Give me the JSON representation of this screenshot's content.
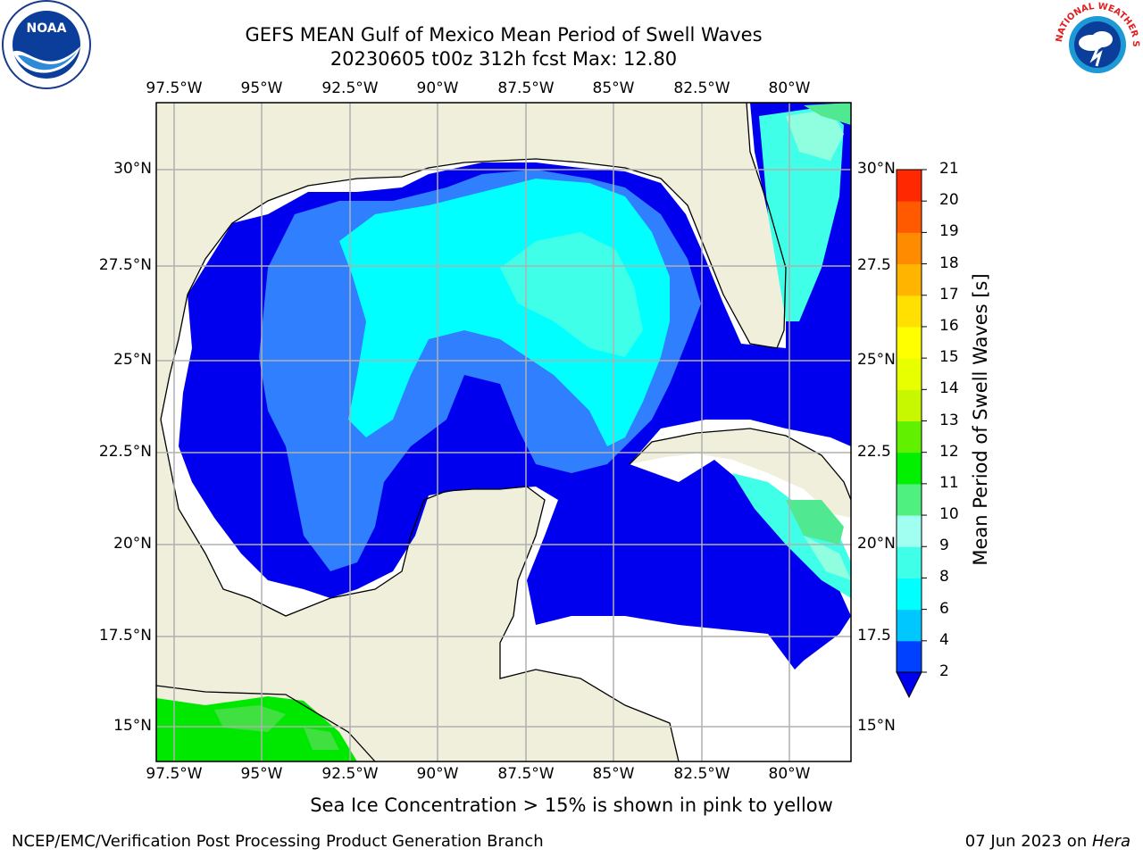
{
  "header": {
    "title_line1": "GEFS MEAN Gulf of Mexico Mean Period of Swell Waves",
    "title_line2": "20230605 t00z 312h fcst   Max: 12.80"
  },
  "map": {
    "lon_labels": [
      "97.5°W",
      "95°W",
      "92.5°W",
      "90°W",
      "87.5°W",
      "85°W",
      "82.5°W",
      "80°W"
    ],
    "lat_labels_left": [
      "30°N",
      "27.5°N",
      "25°N",
      "22.5°N",
      "20°N",
      "17.5°N",
      "15°N"
    ],
    "lat_labels_right": [
      "30°N",
      "27.5",
      "25°N",
      "22.5",
      "20°N",
      "17.5",
      "15°N"
    ],
    "colors": {
      "land": "#efefdc",
      "no_data": "#ffffff",
      "grid": "#b0b0b0",
      "coast": "#000000"
    }
  },
  "colorbar": {
    "label": "Mean Period of Swell Waves [s]",
    "ticks": [
      "2",
      "4",
      "6",
      "8",
      "9",
      "10",
      "11",
      "12",
      "13",
      "14",
      "15",
      "16",
      "17",
      "18",
      "19",
      "20",
      "21"
    ],
    "colors": [
      "#0040ff",
      "#00c8ff",
      "#00ffff",
      "#40ffe8",
      "#a0fff0",
      "#50f080",
      "#00f000",
      "#60f000",
      "#c8f800",
      "#e8ff00",
      "#ffff00",
      "#ffe000",
      "#ffb400",
      "#ff8c00",
      "#ff5a00",
      "#ff2800",
      "#ff0000"
    ],
    "below_color": "#0000ee"
  },
  "caption": "Sea Ice Concentration > 15% is shown in pink to yellow",
  "footer": {
    "left": "NCEP/EMC/Verification Post Processing Product Generation Branch",
    "date": "07 Jun 2023 on ",
    "host": "Hera"
  },
  "logos": {
    "noaa_text": "NOAA",
    "nws_text": "NATIONAL WEATHER SERVICE"
  }
}
